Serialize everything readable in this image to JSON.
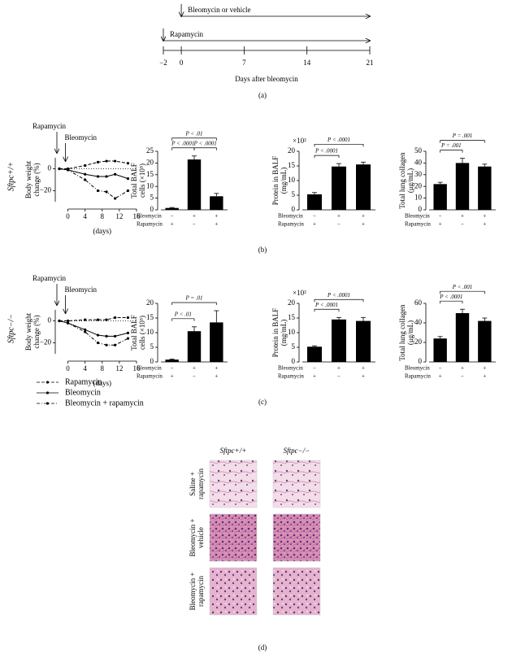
{
  "timeline": {
    "treatments": [
      {
        "label": "Bleomycin or vehicle",
        "start": 0
      },
      {
        "label": "Rapamycin",
        "start": -2
      }
    ],
    "xlim": [
      -2,
      21
    ],
    "xticks": [
      {
        "value": -2,
        "label": "−2"
      },
      0,
      7,
      14,
      21
    ],
    "xlabel": "Days after bleomycin"
  },
  "panel_labels": [
    "(a)",
    "(b)",
    "(c)",
    "(d)"
  ],
  "genotypes": [
    "Sftpc+/+",
    "Sftpc−/−"
  ],
  "chart_data": [
    {
      "type": "line",
      "ylabel": [
        "Body weight",
        "change (%)"
      ],
      "xlabel": "(days)",
      "events": [
        {
          "label": "Rapamycin",
          "day": -2
        },
        {
          "label": "Bleomycin",
          "day": 0
        }
      ],
      "x": [
        -2,
        0,
        4,
        7,
        9,
        11,
        14
      ],
      "xlim": [
        -2,
        16
      ],
      "xticks": [
        0,
        4,
        8,
        12,
        16
      ],
      "ylim": [
        -30,
        10
      ],
      "yticks": [
        {
          "value": -20,
          "label": "−20"
        },
        0
      ],
      "hline": 0,
      "series": [
        {
          "name": "Rapamycin",
          "color": "#000000",
          "style": "dashed",
          "values": [
            0,
            0,
            3,
            6,
            7,
            7,
            5
          ]
        },
        {
          "name": "Bleomycin",
          "color": "#000000",
          "style": "solid",
          "values": [
            0,
            -1,
            -5,
            -7,
            -7,
            -5,
            -9
          ]
        },
        {
          "name": "Bleomycin + rapamycin",
          "color": "#000000",
          "style": "dashdot",
          "values": [
            0,
            -1,
            -10,
            -20,
            -21,
            -27,
            -20
          ]
        }
      ]
    },
    {
      "type": "bar",
      "ylabel": [
        "Total BALF",
        "cells (×10⁵)"
      ],
      "categories": [
        null,
        null,
        null
      ],
      "values": [
        0.8,
        21.5,
        5.8
      ],
      "errors": [
        0.2,
        1.5,
        1.2
      ],
      "color": "#000000",
      "ylim": [
        0,
        25
      ],
      "yticks": [
        0,
        5,
        10,
        15,
        20,
        25
      ],
      "annotations": [
        {
          "text": "P < .0001",
          "from": 0,
          "to": 1
        },
        {
          "text": "P < .0001",
          "from": 1,
          "to": 2
        },
        {
          "text": "P < .01",
          "from": 0,
          "to": 2
        }
      ],
      "conditions": [
        {
          "label": "Bleomycin",
          "marks": [
            "−",
            "+",
            "+"
          ]
        },
        {
          "label": "Rapamycin",
          "marks": [
            "+",
            "−",
            "+"
          ]
        }
      ]
    },
    {
      "type": "bar",
      "ylabel": [
        "Protein in BALF",
        "(mg/mL)"
      ],
      "multiplier": "×10²",
      "categories": [
        null,
        null,
        null
      ],
      "values": [
        5.3,
        14.8,
        15.5
      ],
      "errors": [
        0.6,
        1,
        0.8
      ],
      "color": "#000000",
      "ylim": [
        0,
        20
      ],
      "yticks": [
        0,
        5,
        10,
        15,
        20
      ],
      "annotations": [
        {
          "text": "P < .0001",
          "from": 0,
          "to": 1
        },
        {
          "text": "P < .0001",
          "from": 0,
          "to": 2
        }
      ],
      "conditions": [
        {
          "label": "Bleomycin",
          "marks": [
            "−",
            "+",
            "+"
          ]
        },
        {
          "label": "Rapamycin",
          "marks": [
            "+",
            "−",
            "+"
          ]
        }
      ]
    },
    {
      "type": "bar",
      "ylabel": [
        "Total lung collagen",
        "(μg/mL)"
      ],
      "categories": [
        null,
        null,
        null
      ],
      "values": [
        22,
        40,
        37
      ],
      "errors": [
        1.5,
        4,
        2
      ],
      "color": "#000000",
      "ylim": [
        0,
        50
      ],
      "yticks": [
        0,
        10,
        20,
        30,
        40,
        50
      ],
      "annotations": [
        {
          "text": "P = .001",
          "from": 0,
          "to": 1
        },
        {
          "text": "P = .001",
          "from": 0,
          "to": 2
        }
      ],
      "conditions": [
        {
          "label": "Bleomycin",
          "marks": [
            "−",
            "+",
            "+"
          ]
        },
        {
          "label": "Rapamycin",
          "marks": [
            "+",
            "−",
            "+"
          ]
        }
      ]
    },
    {
      "type": "line",
      "ylabel": [
        "Body weight",
        "change (%)"
      ],
      "xlabel": "(days)",
      "events": [
        {
          "label": "Rapamycin",
          "day": -2
        },
        {
          "label": "Bleomycin",
          "day": 0
        }
      ],
      "x": [
        -2,
        0,
        4,
        7,
        9,
        11,
        14
      ],
      "xlim": [
        -2,
        16
      ],
      "xticks": [
        0,
        4,
        8,
        12,
        16
      ],
      "ylim": [
        -30,
        10
      ],
      "yticks": [
        {
          "value": -20,
          "label": "−20"
        },
        0
      ],
      "hline": 0,
      "series": [
        {
          "name": "Rapamycin",
          "color": "#000000",
          "style": "dashed",
          "values": [
            0,
            0,
            1,
            1,
            1,
            3,
            3
          ]
        },
        {
          "name": "Bleomycin",
          "color": "#000000",
          "style": "solid",
          "values": [
            0,
            -2,
            -8,
            -13,
            -14,
            -14,
            -11
          ]
        },
        {
          "name": "Bleomycin + rapamycin",
          "color": "#000000",
          "style": "dashdot",
          "values": [
            0,
            -2,
            -10,
            -20,
            -22,
            -22,
            -16
          ]
        }
      ]
    },
    {
      "type": "bar",
      "ylabel": [
        "Total BALF",
        "cells (×10⁵)"
      ],
      "categories": [
        null,
        null,
        null
      ],
      "values": [
        0.8,
        10.5,
        13.5
      ],
      "errors": [
        0.2,
        1.5,
        4
      ],
      "color": "#000000",
      "ylim": [
        0,
        20
      ],
      "yticks": [
        0,
        5,
        10,
        15,
        20
      ],
      "annotations": [
        {
          "text": "P < .01",
          "from": 0,
          "to": 1
        },
        {
          "text": "P = .01",
          "from": 0,
          "to": 2
        }
      ],
      "conditions": [
        {
          "label": "Bleomycin",
          "marks": [
            "−",
            "+",
            "+"
          ]
        },
        {
          "label": "Rapamycin",
          "marks": [
            "+",
            "−",
            "+"
          ]
        }
      ]
    },
    {
      "type": "bar",
      "ylabel": [
        "Protein in BALF",
        "(mg/mL)"
      ],
      "multiplier": "×10²",
      "categories": [
        null,
        null,
        null
      ],
      "values": [
        5.2,
        14.5,
        14
      ],
      "errors": [
        0.3,
        0.7,
        1.2
      ],
      "color": "#000000",
      "ylim": [
        0,
        20
      ],
      "yticks": [
        0,
        5,
        10,
        15,
        20
      ],
      "annotations": [
        {
          "text": "P < .0001",
          "from": 0,
          "to": 1
        },
        {
          "text": "P < .0001",
          "from": 0,
          "to": 2
        }
      ],
      "conditions": [
        {
          "label": "Bleomycin",
          "marks": [
            "−",
            "+",
            "+"
          ]
        },
        {
          "label": "Rapamycin",
          "marks": [
            "+",
            "−",
            "+"
          ]
        }
      ]
    },
    {
      "type": "bar",
      "ylabel": [
        "Total lung collagen",
        "(μg/mL)"
      ],
      "categories": [
        null,
        null,
        null
      ],
      "values": [
        24,
        50,
        42
      ],
      "errors": [
        2,
        4,
        3
      ],
      "color": "#000000",
      "ylim": [
        0,
        60
      ],
      "yticks": [
        0,
        20,
        40,
        60
      ],
      "annotations": [
        {
          "text": "P < .0001",
          "from": 0,
          "to": 1
        },
        {
          "text": "P < .001",
          "from": 0,
          "to": 2
        }
      ],
      "conditions": [
        {
          "label": "Bleomycin",
          "marks": [
            "−",
            "+",
            "+"
          ]
        },
        {
          "label": "Rapamycin",
          "marks": [
            "+",
            "−",
            "+"
          ]
        }
      ]
    }
  ],
  "histology": {
    "columns": [
      "Sftpc+/+",
      "Sftpc−/−"
    ],
    "rows": [
      [
        "Saline +",
        "rapamycin"
      ],
      [
        "Bleomycin +",
        "vehicle"
      ],
      [
        "Bleomycin +",
        "rapamycin"
      ]
    ]
  }
}
